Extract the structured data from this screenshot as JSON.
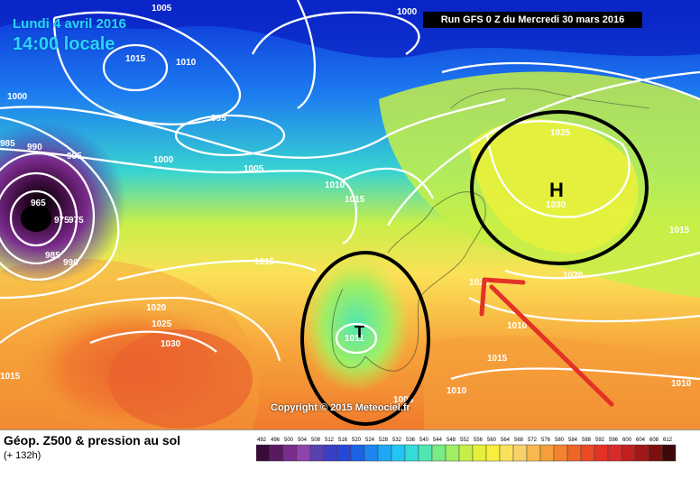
{
  "header": {
    "date_label": "Lundi 4 avril 2016",
    "time_label": "14:00 locale",
    "run_label": "Run GFS 0 Z du Mercredi 30 mars 2016"
  },
  "copyright": "Copyright © 2015 Meteociel.fr",
  "legend": {
    "title": "Géop. Z500 & pression au sol",
    "lead": "(+ 132h)",
    "values": [
      "492",
      "496",
      "500",
      "504",
      "508",
      "512",
      "516",
      "520",
      "524",
      "528",
      "532",
      "536",
      "540",
      "544",
      "548",
      "552",
      "556",
      "560",
      "564",
      "568",
      "572",
      "576",
      "580",
      "584",
      "588",
      "592",
      "596",
      "600",
      "604",
      "608",
      "612"
    ],
    "colors": [
      "#3a0b3a",
      "#5a1a62",
      "#7a2b8c",
      "#8e44ad",
      "#5a3fb0",
      "#3b3fc4",
      "#2747d6",
      "#1c63e6",
      "#1d86f0",
      "#1fa8f5",
      "#22c6f2",
      "#31dcd9",
      "#4fe6b0",
      "#78eb86",
      "#a0ee64",
      "#c6ef48",
      "#e6f03c",
      "#f7ee3e",
      "#fbe157",
      "#fad06a",
      "#f8b84e",
      "#f59e3a",
      "#f2822e",
      "#ee6528",
      "#ea4a26",
      "#e33226",
      "#d82a2a",
      "#c02020",
      "#a01818",
      "#7c1010",
      "#400808"
    ]
  },
  "isobar_labels": [
    "1005",
    "1000",
    "1015",
    "1010",
    "1000",
    "985",
    "990",
    "995",
    "995",
    "1000",
    "1005",
    "1010",
    "1015",
    "965",
    "975",
    "975",
    "985",
    "990",
    "1015",
    "1020",
    "1025",
    "1030",
    "1015",
    "1011",
    "1015",
    "1020",
    "1025",
    "1030",
    "1015",
    "1010",
    "1010",
    "1020",
    "1010",
    "1005"
  ],
  "markers": {
    "high": "H",
    "low": "T",
    "high_value": "1030",
    "low_value": "1011"
  }
}
